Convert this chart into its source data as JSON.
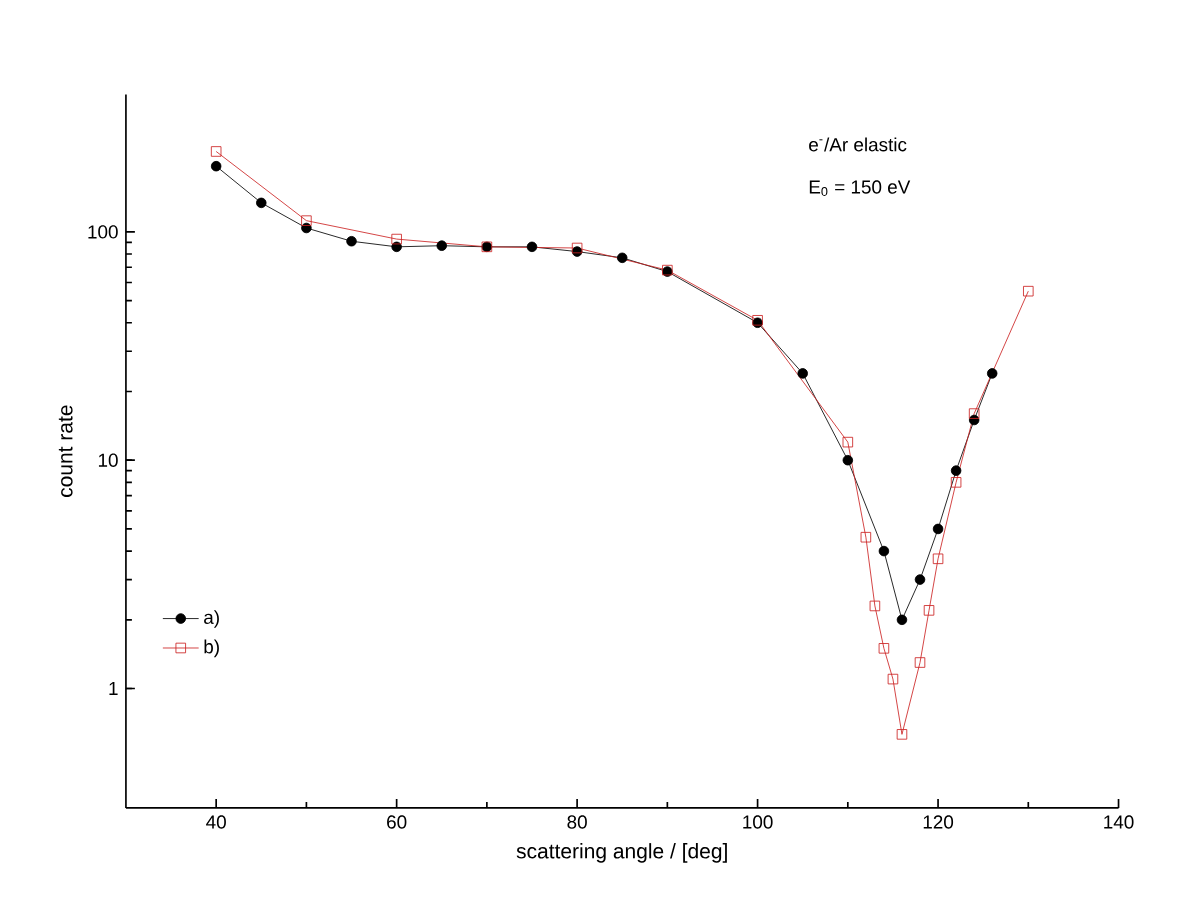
{
  "chart_data": {
    "type": "line",
    "xlabel": "scattering angle / [deg]",
    "ylabel": "count rate",
    "annotations": [
      "e$^{-}$/Ar elastic",
      "E$_{0}$ = 150 eV"
    ],
    "xlim": [
      30,
      140
    ],
    "xticks": [
      40,
      60,
      80,
      100,
      120,
      140
    ],
    "ylim": [
      0.3,
      400
    ],
    "yticks": [
      1,
      10,
      100
    ],
    "log": "y",
    "grid": false,
    "legend": "bottom left",
    "series": [
      {
        "name": "a)",
        "color": "#000000",
        "marker": "circle",
        "x": [
          40,
          45,
          50,
          55,
          60,
          65,
          70,
          75,
          80,
          85,
          90,
          100,
          105,
          110,
          114,
          116,
          118,
          120,
          122,
          124,
          126
        ],
        "values": [
          194,
          134,
          104,
          91,
          86,
          87,
          86,
          86,
          82,
          77,
          67,
          40,
          24,
          10,
          4,
          2,
          3,
          5,
          9,
          15,
          24
        ]
      },
      {
        "name": "b)",
        "color": "#cc2222",
        "marker": "square",
        "x": [
          40,
          50,
          60,
          70,
          80,
          90,
          100,
          110,
          112,
          113,
          114,
          115,
          116,
          118,
          119,
          120,
          122,
          124,
          130
        ],
        "values": [
          225,
          112,
          93,
          86,
          85,
          68,
          41,
          12,
          4.6,
          2.3,
          1.5,
          1.1,
          0.63,
          1.3,
          2.2,
          3.7,
          8,
          16,
          55
        ]
      }
    ]
  }
}
